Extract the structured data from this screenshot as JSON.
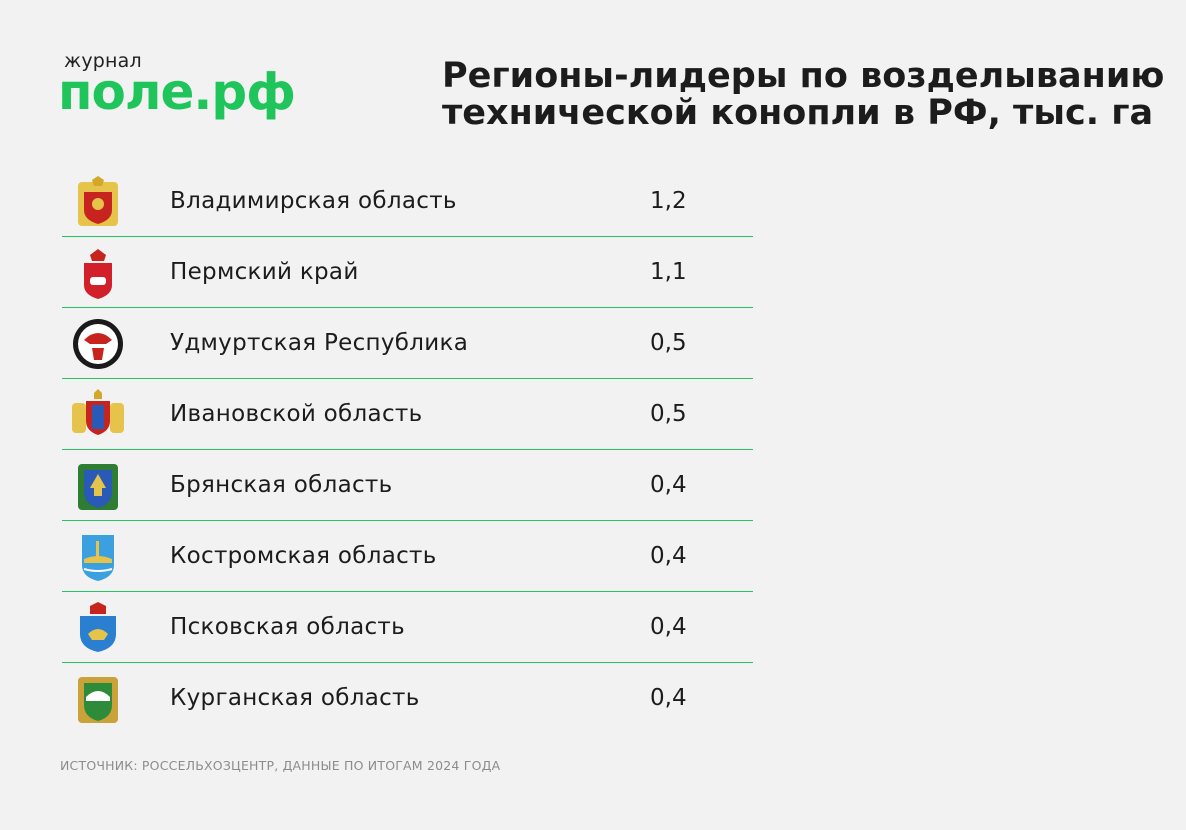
{
  "logo": {
    "small": "журнал",
    "big": "поле.рф",
    "color": "#1fc55a"
  },
  "title": {
    "line1": "Регионы-лидеры по возделыванию",
    "line2": "технической конопли в РФ, тыс. га"
  },
  "source": "ИСТОЧНИК: РОССЕЛЬХОЗЦЕНТР, ДАННЫЕ ПО ИТОГАМ 2024 ГОДА",
  "colors": {
    "accent": "#22c55e",
    "background": "#f2f2f2",
    "text": "#1c1c1c"
  },
  "chart_data": {
    "type": "table",
    "title": "Регионы-лидеры по возделыванию технической конопли в РФ, тыс. га",
    "columns": [
      "region",
      "value"
    ],
    "rows": [
      {
        "region": "Владимирская область",
        "value": "1,2",
        "emblem": "vladimir-coat-of-arms"
      },
      {
        "region": "Пермский край",
        "value": "1,1",
        "emblem": "perm-coat-of-arms"
      },
      {
        "region": "Удмуртская Республика",
        "value": "0,5",
        "emblem": "udmurtia-coat-of-arms"
      },
      {
        "region": "Ивановской область",
        "value": "0,5",
        "emblem": "ivanovo-coat-of-arms"
      },
      {
        "region": "Брянская область",
        "value": "0,4",
        "emblem": "bryansk-coat-of-arms"
      },
      {
        "region": "Костромская область",
        "value": "0,4",
        "emblem": "kostroma-coat-of-arms"
      },
      {
        "region": "Псковская область",
        "value": "0,4",
        "emblem": "pskov-coat-of-arms"
      },
      {
        "region": "Курганская область",
        "value": "0,4",
        "emblem": "kurgan-coat-of-arms"
      }
    ]
  }
}
